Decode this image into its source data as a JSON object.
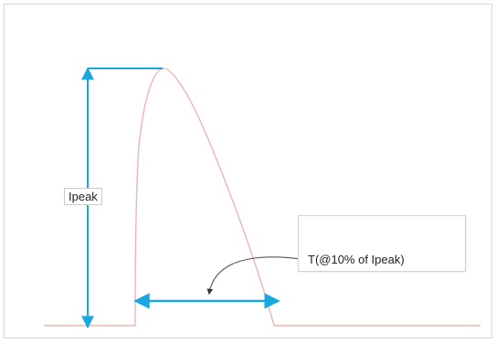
{
  "diagram": {
    "labels": {
      "peak": "Ipeak",
      "width": "T(@10% of Ipeak)"
    },
    "colors": {
      "pulse_curve": "#e8b7b3",
      "dimension_lines": "#1aa7df",
      "pointer": "#555555",
      "frame_border": "#d6d6d6"
    },
    "icons": {
      "dimension_arrows": "double-headed-arrow",
      "callout_pointer": "curved-arrow"
    }
  }
}
